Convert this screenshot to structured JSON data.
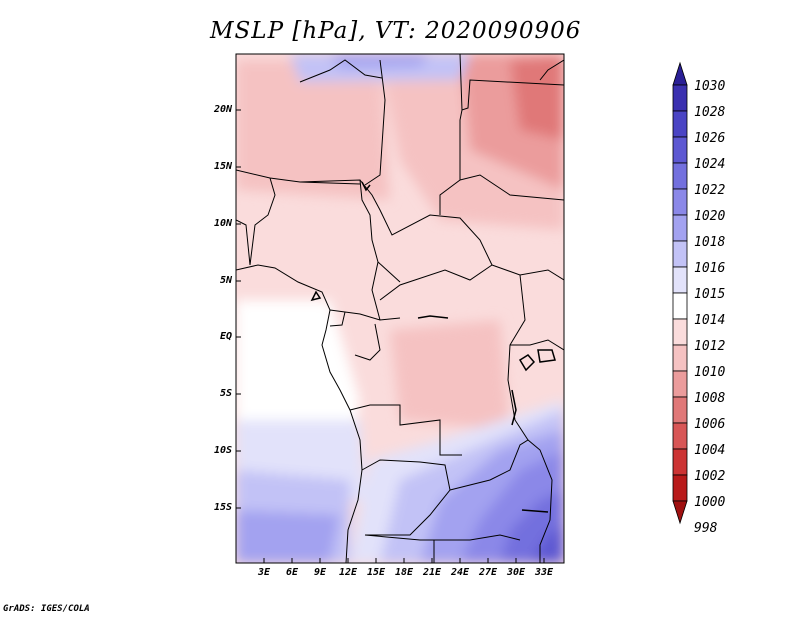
{
  "title": "MSLP [hPa], VT: 2020090906",
  "map": {
    "lat_labels": [
      "20N",
      "15N",
      "10N",
      "5N",
      "EQ",
      "5S",
      "10S",
      "15S"
    ],
    "lon_labels": [
      "3E",
      "6E",
      "9E",
      "12E",
      "15E",
      "18E",
      "21E",
      "24E",
      "27E",
      "30E",
      "33E"
    ]
  },
  "colorbar": {
    "levels": [
      "1030",
      "1028",
      "1026",
      "1024",
      "1022",
      "1020",
      "1018",
      "1016",
      "1015",
      "1014",
      "1012",
      "1010",
      "1008",
      "1006",
      "1004",
      "1002",
      "1000",
      "998"
    ],
    "colors": [
      "#2a1f96",
      "#3a30b0",
      "#4a44c4",
      "#5d58d2",
      "#7370de",
      "#8b88e8",
      "#a3a2f0",
      "#c2c2f6",
      "#e2e2fa",
      "#ffffff",
      "#fadcdc",
      "#f5c2c2",
      "#eb9c9c",
      "#e07878",
      "#d85656",
      "#cc3434",
      "#b81a1a",
      "#a01010"
    ]
  },
  "footer": {
    "credit": "GrADS: IGES/COLA"
  }
}
